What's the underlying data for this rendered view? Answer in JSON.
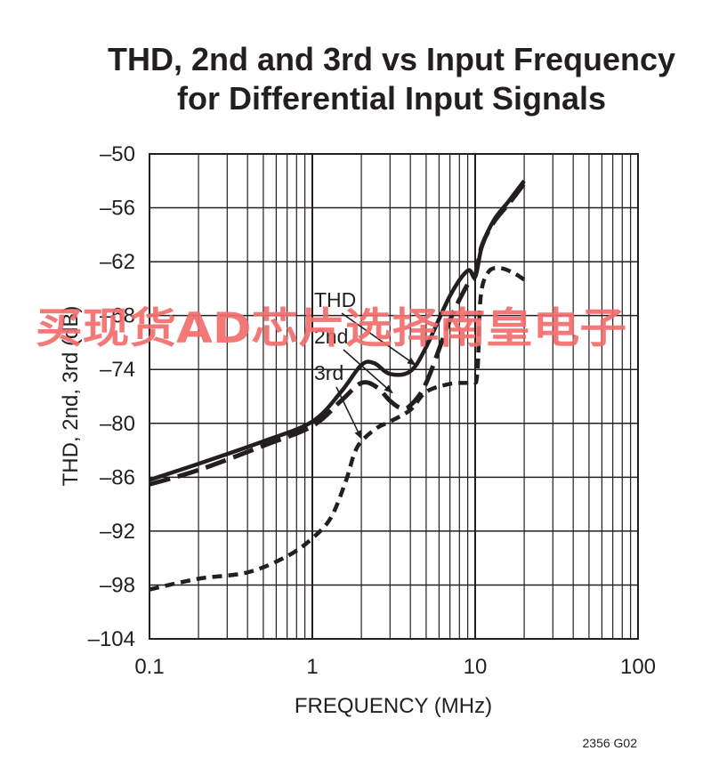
{
  "chart_data": {
    "type": "line",
    "title_line1": "THD, 2nd and 3rd vs Input Frequency",
    "title_line2": "for Differential Input Signals",
    "xlabel": "FREQUENCY (MHz)",
    "ylabel": "THD, 2nd, 3rd (dB)",
    "x_scale": "log",
    "xlim": [
      0.1,
      100
    ],
    "ylim": [
      -104,
      -50
    ],
    "x_ticks": [
      0.1,
      1,
      10,
      100
    ],
    "x_tick_labels": [
      "0.1",
      "1",
      "10",
      "100"
    ],
    "y_ticks": [
      -50,
      -56,
      -62,
      -68,
      -74,
      -80,
      -86,
      -92,
      -98,
      -104
    ],
    "y_tick_labels": [
      "–50",
      "–56",
      "–62",
      "–68",
      "–74",
      "–80",
      "–86",
      "–92",
      "–98",
      "–104"
    ],
    "grid": true,
    "series": [
      {
        "name": "THD",
        "style": "solid",
        "x": [
          0.1,
          0.2,
          0.5,
          1,
          1.5,
          2,
          2.4,
          3,
          4,
          5,
          7,
          9,
          10,
          11,
          13,
          16,
          20
        ],
        "y": [
          -86.3,
          -84.5,
          -82.0,
          -79.8,
          -76.5,
          -73.5,
          -73.3,
          -74.5,
          -74.2,
          -71.5,
          -65.8,
          -63.0,
          -63.7,
          -60.3,
          -57.4,
          -55.3,
          -53.0
        ]
      },
      {
        "name": "2nd",
        "style": "dashed",
        "x": [
          0.1,
          0.2,
          0.5,
          1,
          1.5,
          2,
          2.5,
          3,
          3.5,
          4,
          5,
          7,
          9,
          10,
          11,
          13,
          16,
          20
        ],
        "y": [
          -86.8,
          -85.2,
          -82.5,
          -80.3,
          -77.5,
          -75.5,
          -76.0,
          -77.5,
          -78.3,
          -78.0,
          -75.5,
          -68.5,
          -64.5,
          -63.5,
          -60.2,
          -57.6,
          -55.6,
          -53.3
        ]
      },
      {
        "name": "3rd",
        "style": "short-dash",
        "x": [
          0.1,
          0.2,
          0.4,
          0.7,
          1,
          1.3,
          1.6,
          1.8,
          2,
          2.5,
          3,
          4,
          5,
          7,
          9.5,
          10.3,
          10.8,
          12,
          14,
          17,
          20
        ],
        "y": [
          -98.5,
          -97.3,
          -96.6,
          -94.8,
          -92.8,
          -90.5,
          -86.5,
          -83.5,
          -82.0,
          -80.5,
          -79.8,
          -78.5,
          -76.5,
          -75.6,
          -75.4,
          -74.5,
          -66.0,
          -63.2,
          -62.7,
          -63.2,
          -64.0
        ]
      }
    ],
    "annotations": [
      {
        "text": "THD",
        "points_to": {
          "x": 4.3,
          "y": -73.5
        }
      },
      {
        "text": "2nd",
        "points_to": {
          "x": 3.1,
          "y": -76.6
        }
      },
      {
        "text": "3rd",
        "points_to": {
          "x": 2.0,
          "y": -81.7
        }
      }
    ]
  },
  "figure_code": "2356 G02",
  "watermark": "买现货AD芯片选择南皇电子"
}
